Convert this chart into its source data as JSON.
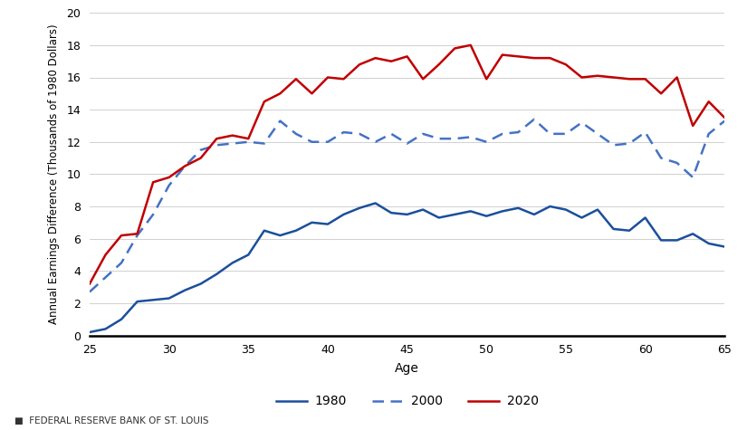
{
  "ages": [
    25,
    26,
    27,
    28,
    29,
    30,
    31,
    32,
    33,
    34,
    35,
    36,
    37,
    38,
    39,
    40,
    41,
    42,
    43,
    44,
    45,
    46,
    47,
    48,
    49,
    50,
    51,
    52,
    53,
    54,
    55,
    56,
    57,
    58,
    59,
    60,
    61,
    62,
    63,
    64,
    65
  ],
  "line_1980": [
    0.2,
    0.4,
    1.0,
    2.1,
    2.2,
    2.3,
    2.8,
    3.2,
    3.8,
    4.5,
    5.0,
    6.5,
    6.2,
    6.5,
    7.0,
    6.9,
    7.5,
    7.9,
    8.2,
    7.6,
    7.5,
    7.8,
    7.3,
    7.5,
    7.7,
    7.4,
    7.7,
    7.9,
    7.5,
    8.0,
    7.8,
    7.3,
    7.8,
    6.6,
    6.5,
    7.3,
    5.9,
    5.9,
    6.3,
    5.7,
    5.5
  ],
  "line_2000": [
    2.7,
    3.6,
    4.5,
    6.2,
    7.5,
    9.3,
    10.5,
    11.5,
    11.8,
    11.9,
    12.0,
    11.9,
    13.3,
    12.5,
    12.0,
    12.0,
    12.6,
    12.5,
    12.0,
    12.5,
    11.9,
    12.5,
    12.2,
    12.2,
    12.3,
    12.0,
    12.5,
    12.6,
    13.4,
    12.5,
    12.5,
    13.2,
    12.5,
    11.8,
    11.9,
    12.6,
    11.0,
    10.7,
    9.8,
    12.5,
    13.3
  ],
  "line_2020": [
    3.2,
    5.0,
    6.2,
    6.3,
    9.5,
    9.8,
    10.5,
    11.0,
    12.2,
    12.4,
    12.2,
    14.5,
    15.0,
    15.9,
    15.0,
    16.0,
    15.9,
    16.8,
    17.2,
    17.0,
    17.3,
    15.9,
    16.8,
    17.8,
    18.0,
    15.9,
    17.4,
    17.3,
    17.2,
    17.2,
    16.8,
    16.0,
    16.1,
    16.0,
    15.9,
    15.9,
    15.0,
    16.0,
    13.0,
    14.5,
    13.5
  ],
  "color_1980": "#1b4f9c",
  "color_2000": "#4472c4",
  "color_2020": "#c00000",
  "label_1980": "1980",
  "label_2000": "2000",
  "label_2020": "2020",
  "xlabel": "Age",
  "ylabel": "Annual Earnings Difference (Thousands of 1980 Dollars)",
  "ylim": [
    0,
    20
  ],
  "yticks": [
    0,
    2,
    4,
    6,
    8,
    10,
    12,
    14,
    16,
    18,
    20
  ],
  "xlim": [
    25,
    65
  ],
  "xticks": [
    25,
    30,
    35,
    40,
    45,
    50,
    55,
    60,
    65
  ],
  "footer": "FEDERAL RESERVE BANK OF ST. LOUIS",
  "linewidth": 1.8,
  "background_color": "#ffffff",
  "grid_color": "#d0d0d0"
}
